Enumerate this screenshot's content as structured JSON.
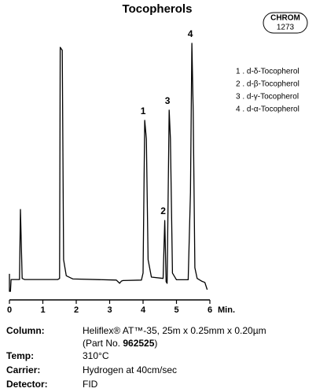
{
  "chart_data": {
    "type": "line",
    "title": "Tocopherols",
    "badge": [
      "CHROM",
      "1273"
    ],
    "xlabel": "Min.",
    "xlim": [
      0,
      6
    ],
    "xticks": [
      0,
      1,
      2,
      3,
      4,
      5,
      6
    ],
    "ylim": [
      0,
      100
    ],
    "color": "#000000",
    "x": [
      0,
      0,
      0.03,
      0.05,
      0.3,
      0.33,
      0.38,
      0.45,
      1.45,
      1.5,
      1.52,
      1.58,
      1.62,
      1.7,
      1.9,
      3.2,
      3.3,
      3.35,
      3.4,
      3.95,
      4.0,
      4.05,
      4.1,
      4.15,
      4.25,
      4.6,
      4.65,
      4.69,
      4.72,
      4.78,
      4.82,
      4.88,
      5.0,
      5.35,
      5.42,
      5.46,
      5.5,
      5.55,
      5.62,
      5.75,
      5.85,
      5.92
    ],
    "values": [
      9.7,
      3.2,
      3.2,
      7.6,
      7.6,
      33.7,
      8,
      7.6,
      7.6,
      8,
      94.1,
      93,
      15,
      9,
      7.8,
      7.4,
      6.2,
      7,
      7.2,
      7.4,
      10,
      66.9,
      60,
      15,
      8.5,
      8,
      29.6,
      6.8,
      6.2,
      70.7,
      60,
      10,
      7.5,
      7.5,
      40,
      95.6,
      70,
      12,
      8,
      7,
      6.5,
      3.8
    ],
    "annotations": [
      {
        "text": "1",
        "x": 4.05,
        "y": 66.9
      },
      {
        "text": "2",
        "x": 4.65,
        "y": 29.6
      },
      {
        "text": "3",
        "x": 4.78,
        "y": 70.7
      },
      {
        "text": "4",
        "x": 5.46,
        "y": 95.6
      }
    ],
    "legend": [
      "1 .  d-δ-Tocopherol",
      "2 .  d-β-Tocopherol",
      "3 .  d-γ-Tocopherol",
      "4 .  d-α-Tocopherol"
    ],
    "conditions": [
      {
        "label": "Column:",
        "value": "Heliflex® AT™-35, 25m x 0.25mm x 0.20µm",
        "extra": [
          "(Part No. ",
          "962525",
          ")"
        ]
      },
      {
        "label": "Temp:",
        "value": "310°C"
      },
      {
        "label": "Carrier:",
        "value": "Hydrogen at 40cm/sec"
      },
      {
        "label": "Detector:",
        "value": "FID"
      }
    ]
  }
}
